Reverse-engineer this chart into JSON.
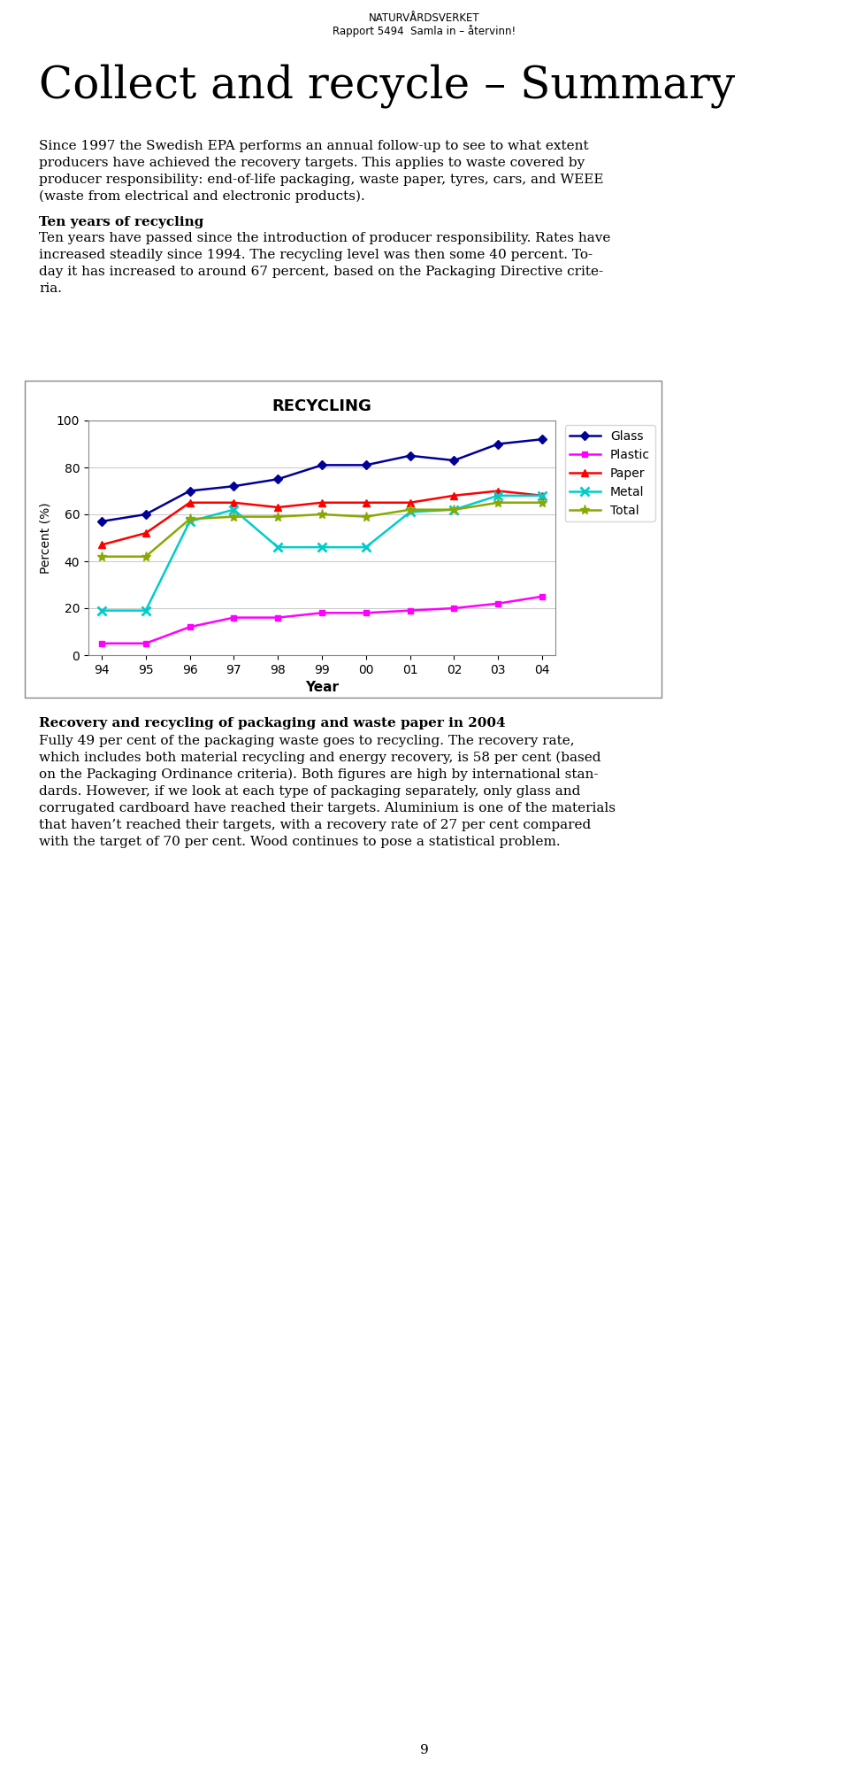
{
  "header_line1": "NATURVÅRDSVERKET",
  "header_line2": "Rapport 5494  Samla in – återvinn!",
  "main_title": "Collect and recycle – Summary",
  "body1_lines": [
    "Since 1997 the Swedish EPA performs an annual follow-up to see to what extent",
    "producers have achieved the recovery targets. This applies to waste covered by",
    "producer responsibility: end-of-life packaging, waste paper, tyres, cars, and WEEE",
    "(waste from electrical and electronic products)."
  ],
  "section_title": "Ten years of recycling",
  "section_lines": [
    "Ten years have passed since the introduction of producer responsibility. Rates have",
    "increased steadily since 1994. The recycling level was then some 40 percent. To-",
    "day it has increased to around 67 percent, based on the Packaging Directive crite-",
    "ria."
  ],
  "chart_title": "RECYCLING",
  "chart_xlabel": "Year",
  "chart_ylabel": "Percent (%)",
  "chart_ylim": [
    0,
    100
  ],
  "chart_yticks": [
    0,
    20,
    40,
    60,
    80,
    100
  ],
  "years": [
    "94",
    "95",
    "96",
    "97",
    "98",
    "99",
    "00",
    "01",
    "02",
    "03",
    "04"
  ],
  "glass": [
    57,
    60,
    70,
    72,
    75,
    81,
    81,
    85,
    83,
    90,
    92
  ],
  "plastic": [
    5,
    5,
    12,
    16,
    16,
    18,
    18,
    19,
    20,
    22,
    25
  ],
  "paper": [
    47,
    52,
    65,
    65,
    63,
    65,
    65,
    65,
    68,
    70,
    68
  ],
  "metal": [
    19,
    19,
    57,
    62,
    46,
    46,
    46,
    61,
    62,
    68,
    68
  ],
  "total": [
    42,
    42,
    58,
    59,
    59,
    60,
    59,
    62,
    62,
    65,
    65
  ],
  "glass_color": "#000099",
  "plastic_color": "#FF00FF",
  "paper_color": "#FF0000",
  "metal_color": "#00CCCC",
  "total_color": "#88AA00",
  "body2_title": "Recovery and recycling of packaging and waste paper in 2004",
  "body2_lines": [
    "Fully 49 per cent of the packaging waste goes to recycling. The recovery rate,",
    "which includes both material recycling and energy recovery, is 58 per cent (based",
    "on the Packaging Ordinance criteria). Both figures are high by international stan-",
    "dards. However, if we look at each type of packaging separately, only glass and",
    "corrugated cardboard have reached their targets. Aluminium is one of the materials",
    "that haven’t reached their targets, with a recovery rate of 27 per cent compared",
    "with the target of 70 per cent. Wood continues to pose a statistical problem."
  ],
  "page_number": "9"
}
